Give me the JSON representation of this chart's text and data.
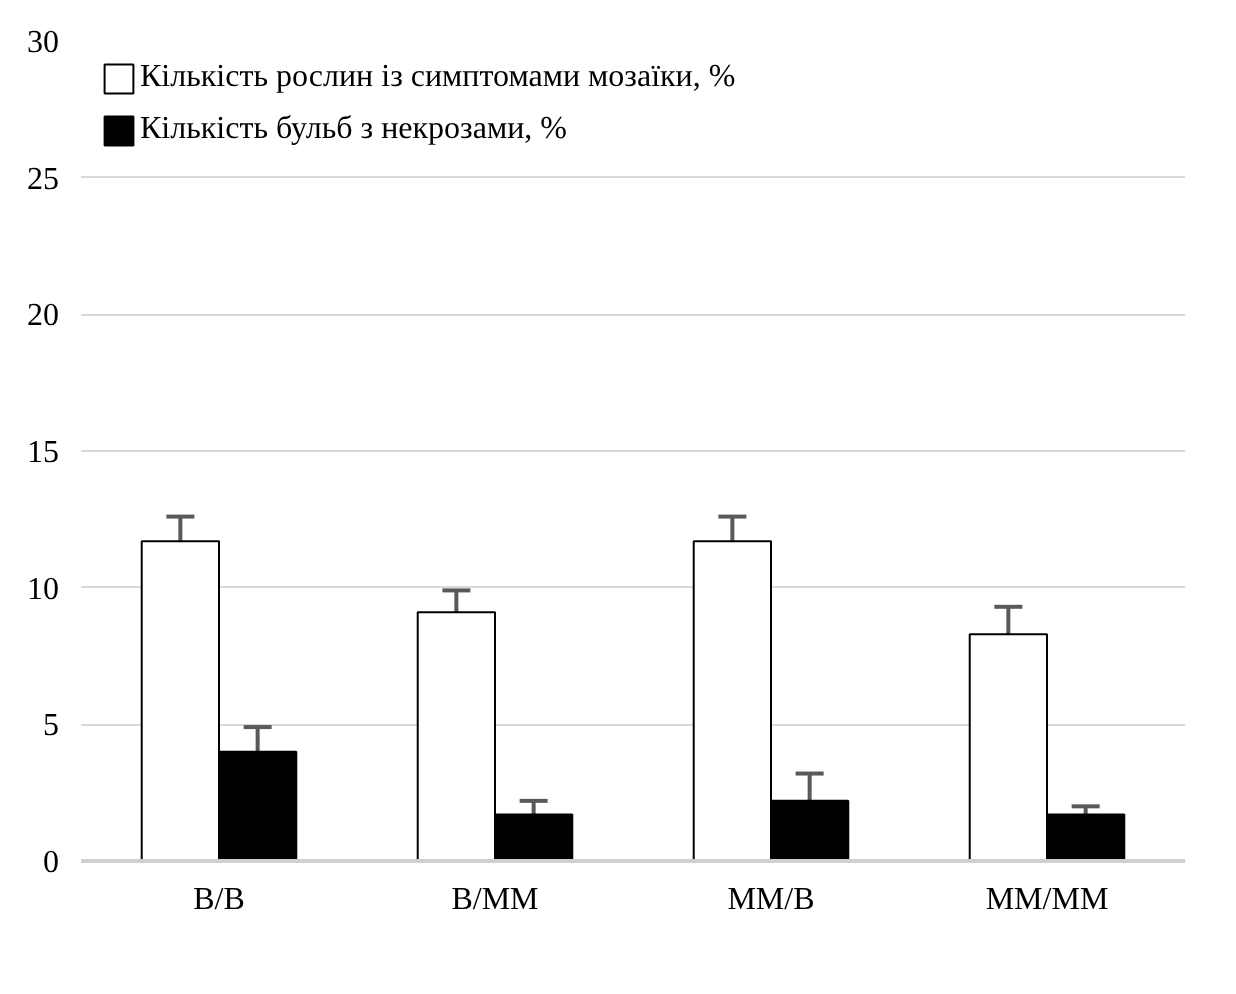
{
  "chart_data": {
    "type": "bar",
    "categories": [
      "B/B",
      "B/MM",
      "MM/B",
      "MM/MM"
    ],
    "series": [
      {
        "name": "Кількість рослин із симптомами мозаїки, %",
        "color": "#ffffff",
        "values": [
          11.7,
          9.1,
          11.7,
          8.3
        ],
        "errors": [
          0.9,
          0.8,
          0.9,
          1.0
        ]
      },
      {
        "name": "Кількість бульб з некрозами, %",
        "color": "#000000",
        "values": [
          4.0,
          1.7,
          2.2,
          1.7
        ],
        "errors": [
          0.9,
          0.5,
          1.0,
          0.3
        ]
      }
    ],
    "ylim": [
      0,
      30
    ],
    "yticks": [
      0,
      5,
      10,
      15,
      20,
      25,
      30
    ],
    "grid": "y",
    "legend": "top left"
  }
}
